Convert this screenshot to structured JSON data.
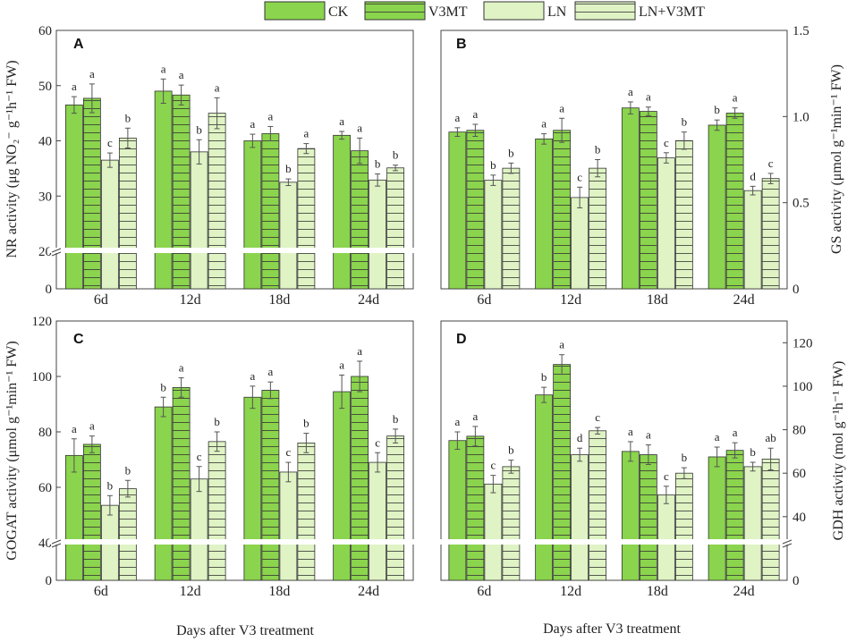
{
  "legend": {
    "entries": [
      {
        "name": "CK",
        "fill": "#8bd44d",
        "hatch": false
      },
      {
        "name": "V3MT",
        "fill": "#8bd44d",
        "hatch": true
      },
      {
        "name": "LN",
        "fill": "#dff3c4",
        "hatch": false
      },
      {
        "name": "LN+V3MT",
        "fill": "#dff3c4",
        "hatch": true
      }
    ]
  },
  "colors": {
    "ck": "#8bd44d",
    "v3mt": "#8bd44d",
    "ln": "#dff3c4",
    "lnv3mt": "#dff3c4",
    "axis": "#444444",
    "stroke": "#333333"
  },
  "chart_data": [
    {
      "type": "bar",
      "panel": "A",
      "ylabel": "NR activity (μg NO₂⁻ g⁻¹h⁻¹ FW)",
      "axis_side": "left",
      "ylim": [
        0,
        60
      ],
      "axis_break": [
        20,
        60
      ],
      "yticks": [
        0,
        20,
        30,
        40,
        50,
        60
      ],
      "categories": [
        "6d",
        "12d",
        "18d",
        "24d"
      ],
      "series": [
        {
          "name": "CK",
          "values": [
            46.5,
            49.0,
            40.0,
            41.0
          ],
          "errors": [
            1.5,
            2.2,
            1.2,
            0.7
          ],
          "letters": [
            "a",
            "a",
            "a",
            "a"
          ]
        },
        {
          "name": "V3MT",
          "values": [
            47.7,
            48.3,
            41.3,
            38.2
          ],
          "errors": [
            2.6,
            1.8,
            1.3,
            2.3
          ],
          "letters": [
            "a",
            "a",
            "a",
            "a"
          ]
        },
        {
          "name": "LN",
          "values": [
            36.5,
            38.0,
            32.5,
            32.9
          ],
          "errors": [
            1.3,
            2.2,
            0.6,
            1.1
          ],
          "letters": [
            "c",
            "b",
            "b",
            "b"
          ]
        },
        {
          "name": "LN+V3MT",
          "values": [
            40.5,
            45.0,
            38.6,
            35.1
          ],
          "errors": [
            1.8,
            2.8,
            0.9,
            0.5
          ],
          "letters": [
            "b",
            "a",
            "a",
            "b"
          ]
        }
      ]
    },
    {
      "type": "bar",
      "panel": "B",
      "ylabel": "GS activity (μmol g⁻¹min⁻¹ FW)",
      "axis_side": "right",
      "ylim": [
        0,
        1.5
      ],
      "yticks": [
        0,
        0.5,
        1.0,
        1.5
      ],
      "ytick_labels": [
        "0",
        "0.5",
        "1.0",
        "1.5"
      ],
      "categories": [
        "6d",
        "12d",
        "18d",
        "24d"
      ],
      "series": [
        {
          "name": "CK",
          "values": [
            0.91,
            0.87,
            1.05,
            0.95
          ],
          "errors": [
            0.025,
            0.03,
            0.035,
            0.03
          ],
          "letters": [
            "a",
            "a",
            "a",
            "b"
          ]
        },
        {
          "name": "V3MT",
          "values": [
            0.92,
            0.92,
            1.03,
            1.02
          ],
          "errors": [
            0.035,
            0.07,
            0.025,
            0.03
          ],
          "letters": [
            "a",
            "a",
            "a",
            "a"
          ]
        },
        {
          "name": "LN",
          "values": [
            0.63,
            0.53,
            0.76,
            0.57
          ],
          "errors": [
            0.03,
            0.06,
            0.03,
            0.025
          ],
          "letters": [
            "b",
            "c",
            "c",
            "d"
          ]
        },
        {
          "name": "LN+V3MT",
          "values": [
            0.7,
            0.7,
            0.86,
            0.64
          ],
          "errors": [
            0.03,
            0.05,
            0.05,
            0.03
          ],
          "letters": [
            "b",
            "b",
            "b",
            "c"
          ]
        }
      ]
    },
    {
      "type": "bar",
      "panel": "C",
      "ylabel": "GOGAT activity (μmol g⁻¹min⁻¹ FW)",
      "axis_side": "left",
      "ylim": [
        0,
        120
      ],
      "axis_break": [
        40,
        120
      ],
      "yticks": [
        0,
        40,
        60,
        80,
        100,
        120
      ],
      "categories": [
        "6d",
        "12d",
        "18d",
        "24d"
      ],
      "series": [
        {
          "name": "CK",
          "values": [
            71.5,
            89.0,
            92.5,
            94.5
          ],
          "errors": [
            6.0,
            3.5,
            4.0,
            6.0
          ],
          "letters": [
            "a",
            "b",
            "a",
            "a"
          ]
        },
        {
          "name": "V3MT",
          "values": [
            75.5,
            96.0,
            95.0,
            100.0
          ],
          "errors": [
            3.0,
            3.5,
            3.0,
            5.5
          ],
          "letters": [
            "a",
            "a",
            "a",
            "a"
          ]
        },
        {
          "name": "LN",
          "values": [
            53.5,
            63.0,
            65.5,
            69.0
          ],
          "errors": [
            3.5,
            4.5,
            3.5,
            3.5
          ],
          "letters": [
            "b",
            "c",
            "c",
            "c"
          ]
        },
        {
          "name": "LN+V3MT",
          "values": [
            59.5,
            76.5,
            76.0,
            78.5
          ],
          "errors": [
            3.0,
            3.5,
            3.5,
            2.5
          ],
          "letters": [
            "b",
            "b",
            "b",
            "b"
          ]
        }
      ]
    },
    {
      "type": "bar",
      "panel": "D",
      "ylabel": "GDH activity (mol g⁻¹h⁻¹ FW)",
      "axis_side": "right",
      "ylim": [
        0,
        130
      ],
      "axis_break": [
        28,
        130
      ],
      "yticks": [
        0,
        40,
        60,
        80,
        100,
        120
      ],
      "categories": [
        "6d",
        "12d",
        "18d",
        "24d"
      ],
      "series": [
        {
          "name": "CK",
          "values": [
            75.0,
            96.0,
            70.0,
            67.5
          ],
          "errors": [
            4.0,
            3.5,
            4.5,
            4.5
          ],
          "letters": [
            "a",
            "b",
            "a",
            "a"
          ]
        },
        {
          "name": "V3MT",
          "values": [
            77.0,
            110.0,
            68.5,
            70.5
          ],
          "errors": [
            4.5,
            4.5,
            4.5,
            3.5
          ],
          "letters": [
            "a",
            "a",
            "a",
            "a"
          ]
        },
        {
          "name": "LN",
          "values": [
            55.0,
            68.5,
            50.0,
            63.0
          ],
          "errors": [
            4.0,
            3.0,
            4.0,
            2.0
          ],
          "letters": [
            "c",
            "d",
            "c",
            "b"
          ]
        },
        {
          "name": "LN+V3MT",
          "values": [
            63.0,
            79.5,
            60.0,
            66.5
          ],
          "errors": [
            3.0,
            1.5,
            2.5,
            5.0
          ],
          "letters": [
            "b",
            "c",
            "b",
            "ab"
          ]
        }
      ]
    }
  ],
  "xlabel_left": "Days after V3 treatment",
  "xlabel_right": "Days after V3 treatment"
}
